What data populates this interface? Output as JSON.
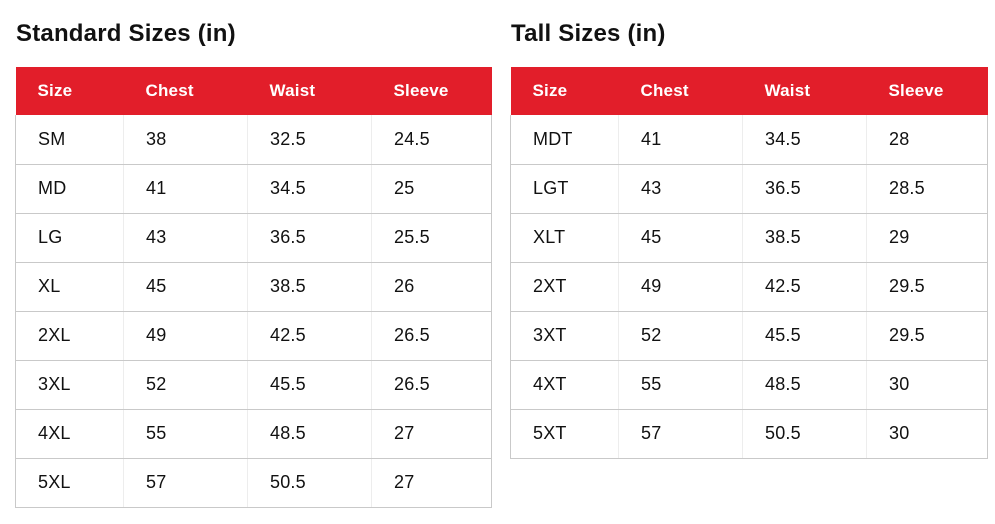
{
  "colors": {
    "header_bg": "#e21e2a",
    "header_text": "#ffffff",
    "row_border": "#c9c9c9",
    "col_border": "#ededed",
    "body_text": "#111111",
    "title_text": "#111111",
    "page_bg": "#ffffff"
  },
  "tables": [
    {
      "id": "standard",
      "title": "Standard Sizes (in)",
      "columns": [
        "Size",
        "Chest",
        "Waist",
        "Sleeve"
      ],
      "rows": [
        [
          "SM",
          "38",
          "32.5",
          "24.5"
        ],
        [
          "MD",
          "41",
          "34.5",
          "25"
        ],
        [
          "LG",
          "43",
          "36.5",
          "25.5"
        ],
        [
          "XL",
          "45",
          "38.5",
          "26"
        ],
        [
          "2XL",
          "49",
          "42.5",
          "26.5"
        ],
        [
          "3XL",
          "52",
          "45.5",
          "26.5"
        ],
        [
          "4XL",
          "55",
          "48.5",
          "27"
        ],
        [
          "5XL",
          "57",
          "50.5",
          "27"
        ]
      ]
    },
    {
      "id": "tall",
      "title": "Tall Sizes (in)",
      "columns": [
        "Size",
        "Chest",
        "Waist",
        "Sleeve"
      ],
      "rows": [
        [
          "MDT",
          "41",
          "34.5",
          "28"
        ],
        [
          "LGT",
          "43",
          "36.5",
          "28.5"
        ],
        [
          "XLT",
          "45",
          "38.5",
          "29"
        ],
        [
          "2XT",
          "49",
          "42.5",
          "29.5"
        ],
        [
          "3XT",
          "52",
          "45.5",
          "29.5"
        ],
        [
          "4XT",
          "55",
          "48.5",
          "30"
        ],
        [
          "5XT",
          "57",
          "50.5",
          "30"
        ]
      ]
    }
  ]
}
